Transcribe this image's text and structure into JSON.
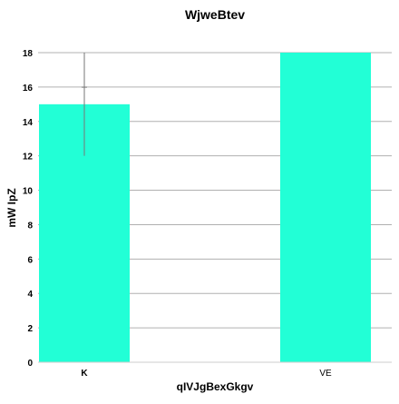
{
  "chart_data": {
    "type": "bar",
    "title": "WjweBtev",
    "xlabel": "qIVJgBexGkgv",
    "ylabel": "mW IpZ",
    "categories": [
      "K",
      "VE"
    ],
    "values": [
      15,
      18
    ],
    "error": [
      3,
      null
    ],
    "ylim": [
      0,
      18
    ],
    "yticks": [
      0,
      2,
      4,
      6,
      8,
      10,
      12,
      14,
      16,
      18
    ],
    "grid": "horizontal",
    "bar_color": "#22ffd6"
  }
}
